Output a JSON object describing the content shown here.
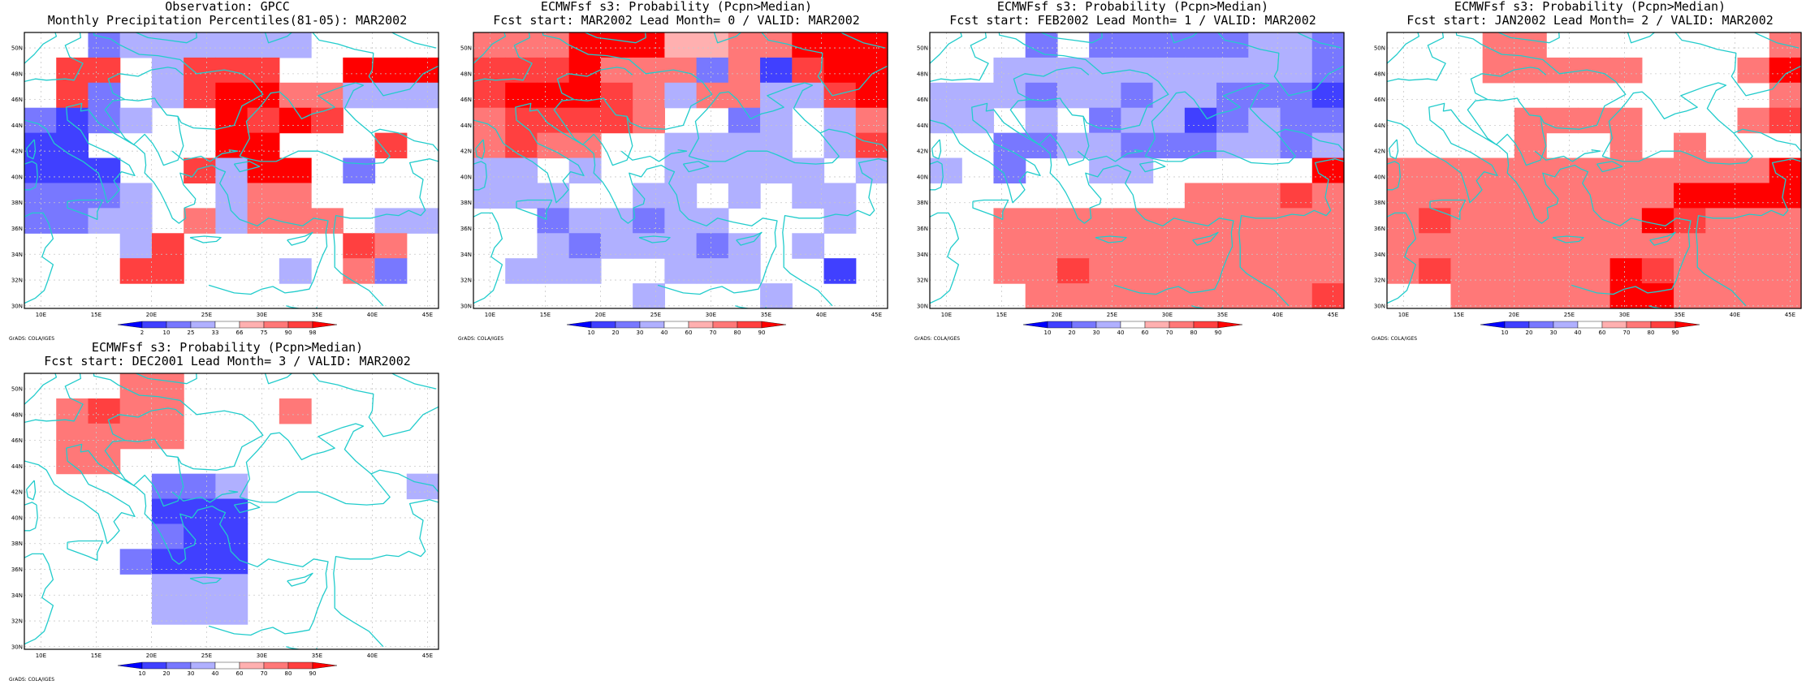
{
  "credit": "GrADS: COLA/IGES",
  "map": {
    "lon_labels": [
      "10E",
      "15E",
      "20E",
      "25E",
      "30E",
      "35E",
      "40E",
      "45E"
    ],
    "lat_labels": [
      "30N",
      "32N",
      "34N",
      "36N",
      "38N",
      "40N",
      "42N",
      "44N",
      "46N",
      "48N",
      "50N"
    ]
  },
  "colors": {
    "coast": "#22cccc",
    "obs_scale": [
      "#0000ff",
      "#4040ff",
      "#7878ff",
      "#b0b0ff",
      "#ffffff",
      "#ffb0b0",
      "#ff7878",
      "#ff4040",
      "#ff0000"
    ],
    "prob_scale": [
      "#0000ff",
      "#4040ff",
      "#7878ff",
      "#b0b0ff",
      "#ffffff",
      "#ffb0b0",
      "#ff7878",
      "#ff4040",
      "#ff0000"
    ]
  },
  "panels": [
    {
      "title1": "Observation: GPCC",
      "title2": "Monthly Precipitation Percentiles(81-05): MAR2002",
      "colorbar_labels": [
        "2",
        "10",
        "25",
        "33",
        "66",
        "75",
        "90",
        "98"
      ],
      "colorbar_kind": "obs",
      "grid": [
        "4423333334444",
        "4774377744888",
        "4724378866333",
        "2123448787444",
        "1144448844474",
        "1114473884244",
        "2223443664444",
        "2233463666433",
        "4443744444764",
        "4447744434624",
        "4444444444444"
      ]
    },
    {
      "title1": "ECMWFsf s3: Probability (Pcpn>Median)",
      "title2": "Fcst start: MAR2002  Lead Month= 0 / VALID: MAR2002",
      "colorbar_labels": [
        "10",
        "20",
        "30",
        "40",
        "60",
        "70",
        "80",
        "90"
      ],
      "colorbar_kind": "prob",
      "grid": [
        "6668885566888",
        "7778666261788",
        "7888763663378",
        "6777764423436",
        "6766443333437",
        "3343443333343",
        "3334433434334",
        "4423323344434",
        "4432333234344",
        "4333443334414",
        "4444434443444"
      ]
    },
    {
      "title1": "ECMWFsf s3: Probability (Pcpn>Median)",
      "title2": "Fcst start: FEB2002  Lead Month= 1 / VALID: MAR2002",
      "colorbar_labels": [
        "10",
        "20",
        "30",
        "40",
        "60",
        "70",
        "80",
        "90"
      ],
      "colorbar_kind": "prob",
      "grid": [
        "4442422222332",
        "4433333333332",
        "3332332332221",
        "3343423312322",
        "4422332223323",
        "3424433444448",
        "4444444466676",
        "4466666666666",
        "4466666666666",
        "4466766666666",
        "4446666666667"
      ]
    },
    {
      "title1": "ECMWFsf s3: Probability (Pcpn>Median)",
      "title2": "Fcst start: JAN2002  Lead Month= 2 / VALID: MAR2002",
      "colorbar_labels": [
        "10",
        "20",
        "30",
        "40",
        "60",
        "70",
        "80",
        "90"
      ],
      "colorbar_kind": "prob",
      "grid": [
        "4446644444446",
        "4446666644468",
        "4444444444446",
        "4444666644467",
        "4444644646444",
        "6666666666668",
        "6666666668888",
        "6766666687666",
        "6666666666666",
        "6766666876666",
        "4466666886666"
      ]
    },
    {
      "title1": "ECMWFsf s3: Probability (Pcpn>Median)",
      "title2": "Fcst start: DEC2001  Lead Month= 3 / VALID: MAR2002",
      "colorbar_labels": [
        "10",
        "20",
        "30",
        "40",
        "60",
        "70",
        "80",
        "90"
      ],
      "colorbar_kind": "prob",
      "grid": [
        "4446644444444",
        "4676644464444",
        "4666644444444",
        "4664444444444",
        "4444223444443",
        "4444111444444",
        "4444211444444",
        "4442111444444",
        "4444333444444",
        "4444333444444",
        "4444444444444"
      ]
    }
  ]
}
